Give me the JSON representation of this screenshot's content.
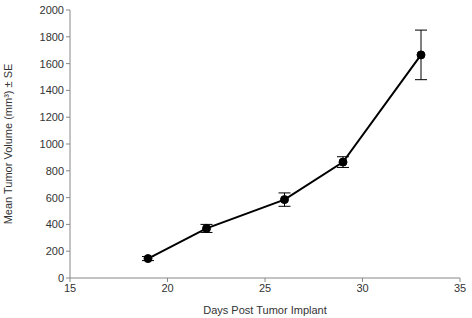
{
  "chart_data": {
    "type": "line",
    "x_label": "Days Post Tumor Implant",
    "y_label": "Mean Tumor Volume (mm³) ± SE",
    "x": [
      19,
      22,
      26,
      29,
      33
    ],
    "values": [
      145,
      370,
      585,
      865,
      1665
    ],
    "error": [
      15,
      30,
      50,
      40,
      185
    ],
    "color": "#000000",
    "marker": "circle",
    "line_style": "solid",
    "xlim": [
      15,
      35
    ],
    "xticks": [
      15,
      20,
      25,
      30,
      35
    ],
    "ylim": [
      0,
      2000
    ],
    "yticks": [
      0,
      200,
      400,
      600,
      800,
      1000,
      1200,
      1400,
      1600,
      1800,
      2000
    ],
    "grid": false
  }
}
